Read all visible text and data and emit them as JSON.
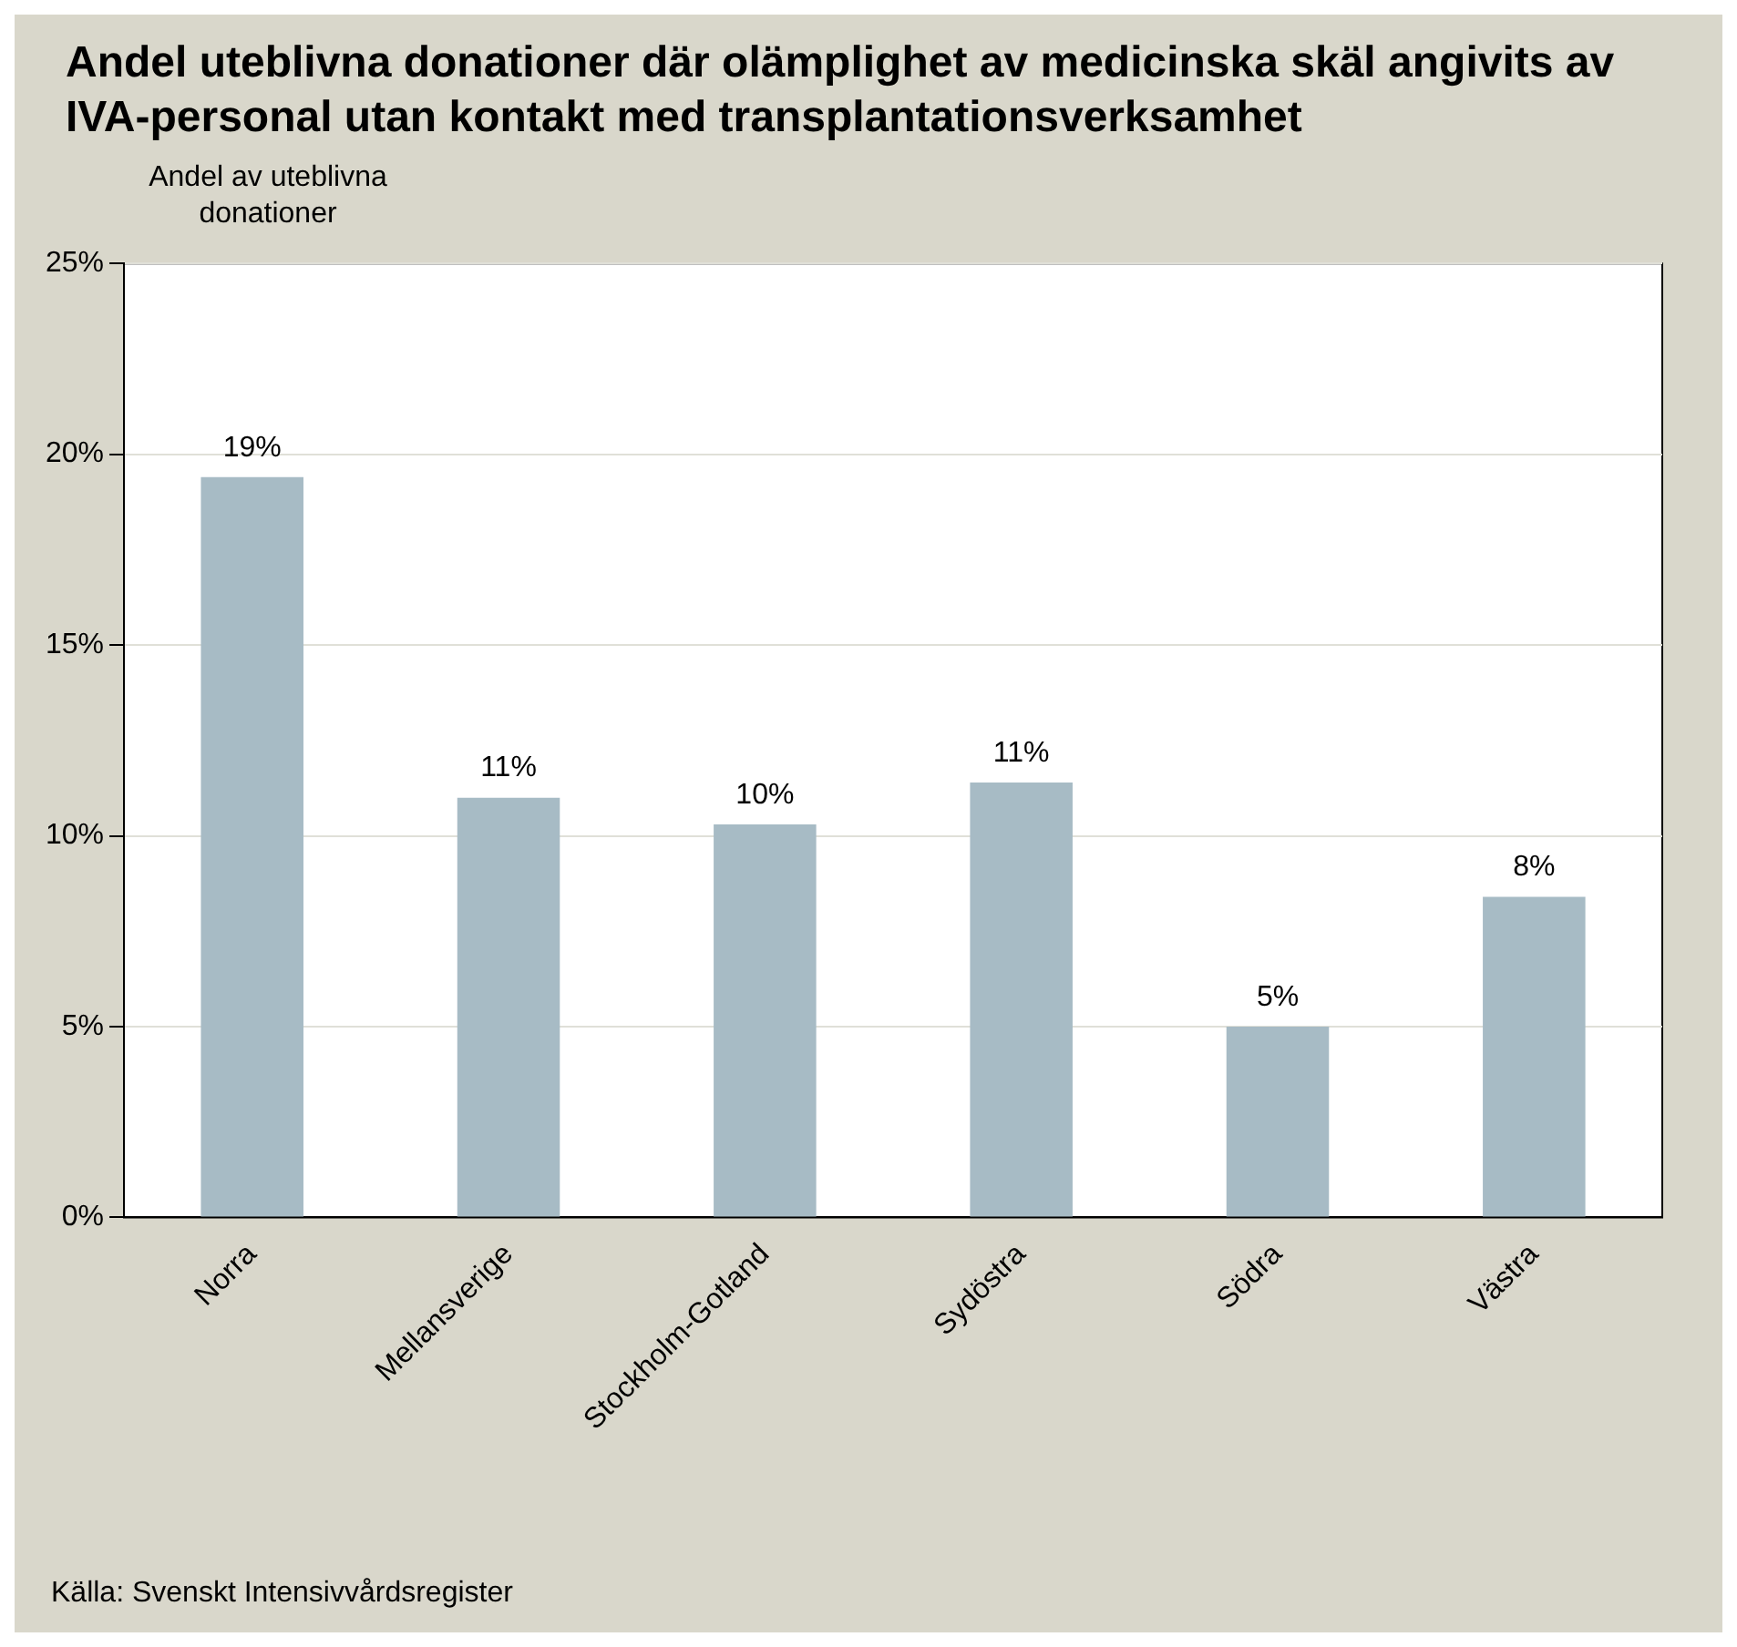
{
  "chart_data": {
    "type": "bar",
    "title": "Andel uteblivna donationer där olämplighet av medicinska skäl angivits av IVA-personal utan kontakt med transplantationsverksamhet",
    "ylabel": "Andel av uteblivna donationer",
    "categories": [
      "Norra",
      "Mellansverige",
      "Stockholm-Gotland",
      "Sydöstra",
      "Södra",
      "Västra"
    ],
    "values": [
      19.4,
      11.0,
      10.3,
      11.4,
      5.0,
      8.4
    ],
    "value_labels": [
      "19%",
      "11%",
      "10%",
      "11%",
      "5%",
      "8%"
    ],
    "color": "#a7bbc5",
    "ylim": [
      0,
      25
    ],
    "yticks": [
      {
        "value": 0,
        "label": "0%"
      },
      {
        "value": 5,
        "label": "5%"
      },
      {
        "value": 10,
        "label": "10%"
      },
      {
        "value": 15,
        "label": "15%"
      },
      {
        "value": 20,
        "label": "20%"
      },
      {
        "value": 25,
        "label": "25%"
      }
    ],
    "grid": "y",
    "annotations": [
      "Källa: Svenskt Intensivvårdsregister"
    ]
  }
}
